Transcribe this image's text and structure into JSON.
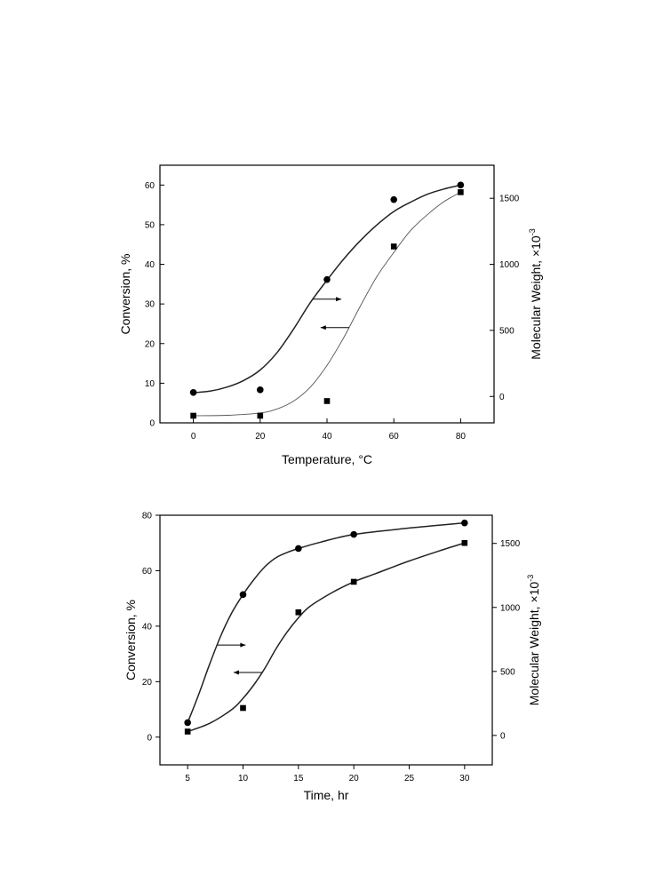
{
  "chart_data": [
    {
      "type": "scatter",
      "xlabel": "Temperature, °C",
      "ylabel": "Conversion, %",
      "y2label": "Molecular Weight, ×10",
      "y2label_exponent": "-3",
      "xlim": [
        -10,
        90
      ],
      "ylim": [
        0,
        65
      ],
      "y2lim": [
        -200,
        1750
      ],
      "xticks": [
        0,
        20,
        40,
        60,
        80
      ],
      "yticks": [
        0,
        10,
        20,
        30,
        40,
        50,
        60
      ],
      "y2ticks": [
        0,
        500,
        1000,
        1500
      ],
      "grid": false,
      "series": [
        {
          "marker": "circle",
          "axis": "right",
          "x": [
            0,
            20,
            40,
            60,
            80
          ],
          "y": [
            30,
            50,
            885,
            1490,
            1600
          ],
          "curve_x": [
            0,
            5,
            10,
            15,
            20,
            25,
            30,
            35,
            40,
            45,
            50,
            55,
            60,
            65,
            70,
            75,
            80
          ],
          "curve_y": [
            28,
            40,
            70,
            120,
            200,
            330,
            510,
            710,
            880,
            1040,
            1180,
            1300,
            1400,
            1470,
            1530,
            1570,
            1600
          ],
          "arrow": "right"
        },
        {
          "marker": "square",
          "axis": "left",
          "x": [
            0,
            20,
            40,
            60,
            80
          ],
          "y": [
            1.8,
            1.8,
            5.5,
            44.5,
            58.2
          ],
          "curve_x": [
            0,
            10,
            20,
            25,
            30,
            35,
            40,
            45,
            50,
            55,
            60,
            65,
            70,
            75,
            80
          ],
          "curve_y": [
            1.8,
            1.9,
            2.5,
            3.5,
            5.5,
            9.0,
            14.5,
            21.5,
            29.5,
            37.0,
            43.0,
            48.5,
            52.5,
            55.8,
            58.2
          ],
          "arrow": "left"
        }
      ]
    },
    {
      "type": "scatter",
      "xlabel": "Time, hr",
      "ylabel": "Conversion, %",
      "y2label": "Molecular Weight, ×10",
      "y2label_exponent": "-3",
      "xlim": [
        2.5,
        32.5
      ],
      "ylim": [
        -10,
        80
      ],
      "y2lim": [
        -230,
        1720
      ],
      "xticks": [
        5,
        10,
        15,
        20,
        25,
        30
      ],
      "yticks": [
        0,
        20,
        40,
        60,
        80
      ],
      "y2ticks": [
        0,
        500,
        1000,
        1500
      ],
      "grid": false,
      "series": [
        {
          "marker": "circle",
          "axis": "right",
          "x": [
            5,
            10,
            15,
            20,
            30
          ],
          "y": [
            100,
            1100,
            1460,
            1570,
            1660
          ],
          "curve_x": [
            5,
            6,
            7,
            8,
            9,
            10,
            11,
            12,
            13,
            14,
            15,
            17,
            20,
            25,
            30
          ],
          "curve_y": [
            100,
            320,
            560,
            780,
            960,
            1100,
            1220,
            1320,
            1390,
            1430,
            1460,
            1510,
            1570,
            1620,
            1660
          ],
          "arrow": "right"
        },
        {
          "marker": "square",
          "axis": "left",
          "x": [
            5,
            10,
            15,
            20,
            30
          ],
          "y": [
            2,
            10.5,
            45,
            56,
            70
          ],
          "curve_x": [
            5,
            7,
            9,
            10,
            11,
            12,
            13,
            14,
            15,
            16,
            18,
            20,
            22,
            25,
            28,
            30
          ],
          "curve_y": [
            2,
            5,
            10,
            14,
            19,
            25,
            32,
            38,
            43,
            47,
            52,
            56,
            59,
            63.5,
            67.5,
            70
          ],
          "arrow": "left"
        }
      ]
    }
  ]
}
